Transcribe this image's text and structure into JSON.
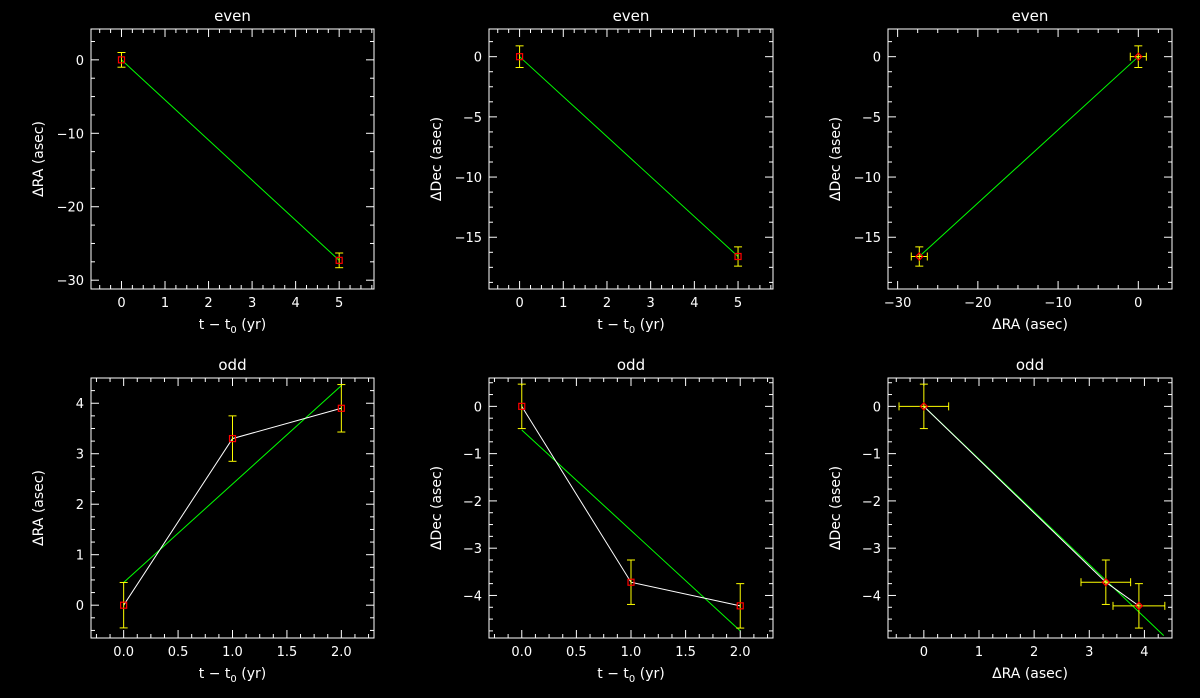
{
  "colors": {
    "background": "#000000",
    "axes": "#ffffff",
    "data_line": "#ffffff",
    "fit_line": "#00ff00",
    "error_bar": "#ffff00",
    "marker": "#ff0000"
  },
  "chart_data": [
    {
      "type": "scatter",
      "title": "even",
      "xlabel": "t − t",
      "xlabel_sub": "0",
      "xlabel_tail": " (yr)",
      "ylabel": "ΔRA (asec)",
      "xlim": [
        -0.7,
        5.8
      ],
      "ylim": [
        -31.2,
        4.2
      ],
      "xticks": [
        0,
        1,
        2,
        3,
        4,
        5
      ],
      "xtick_labels": [
        "0",
        "1",
        "2",
        "3",
        "4",
        "5"
      ],
      "yticks": [
        -30,
        -20,
        -10,
        0
      ],
      "ytick_labels": [
        "−30",
        "−20",
        "−10",
        "0"
      ],
      "points": [
        {
          "x": 0,
          "y": 0
        },
        {
          "x": 5,
          "y": -27.3
        }
      ],
      "yerr": [
        1.0,
        1.0
      ],
      "xerr": null,
      "fit": [
        [
          0,
          0
        ],
        [
          5,
          -27.3
        ]
      ],
      "connect": false,
      "marker": "square"
    },
    {
      "type": "scatter",
      "title": "even",
      "xlabel": "t − t",
      "xlabel_sub": "0",
      "xlabel_tail": " (yr)",
      "ylabel": "ΔDec (asec)",
      "xlim": [
        -0.7,
        5.8
      ],
      "ylim": [
        -19.3,
        2.3
      ],
      "xticks": [
        0,
        1,
        2,
        3,
        4,
        5
      ],
      "xtick_labels": [
        "0",
        "1",
        "2",
        "3",
        "4",
        "5"
      ],
      "yticks": [
        -15,
        -10,
        -5,
        0
      ],
      "ytick_labels": [
        "−15",
        "−10",
        "−5",
        "0"
      ],
      "points": [
        {
          "x": 0,
          "y": 0
        },
        {
          "x": 5,
          "y": -16.6
        }
      ],
      "yerr": [
        0.9,
        0.8
      ],
      "xerr": null,
      "fit": [
        [
          0,
          0
        ],
        [
          5,
          -16.6
        ]
      ],
      "connect": false,
      "marker": "square"
    },
    {
      "type": "scatter",
      "title": "even",
      "xlabel": "ΔRA (asec)",
      "xlabel_sub": "",
      "xlabel_tail": "",
      "ylabel": "ΔDec (asec)",
      "xlim": [
        -31.2,
        4.2
      ],
      "ylim": [
        -19.3,
        2.3
      ],
      "xticks": [
        -30,
        -20,
        -10,
        0
      ],
      "xtick_labels": [
        "−30",
        "−20",
        "−10",
        "0"
      ],
      "yticks": [
        -15,
        -10,
        -5,
        0
      ],
      "ytick_labels": [
        "−15",
        "−10",
        "−5",
        "0"
      ],
      "points": [
        {
          "x": 0,
          "y": 0
        },
        {
          "x": -27.3,
          "y": -16.6
        }
      ],
      "yerr": [
        0.9,
        0.8
      ],
      "xerr": [
        1.0,
        1.0
      ],
      "fit": [
        [
          0,
          0
        ],
        [
          -27.3,
          -16.6
        ]
      ],
      "connect": false,
      "marker": "diamond"
    },
    {
      "type": "line",
      "title": "odd",
      "xlabel": "t − t",
      "xlabel_sub": "0",
      "xlabel_tail": " (yr)",
      "ylabel": "ΔRA (asec)",
      "xlim": [
        -0.3,
        2.3
      ],
      "ylim": [
        -0.65,
        4.5
      ],
      "xticks": [
        0.0,
        0.5,
        1.0,
        1.5,
        2.0
      ],
      "xtick_labels": [
        "0.0",
        "0.5",
        "1.0",
        "1.5",
        "2.0"
      ],
      "yticks": [
        0,
        1,
        2,
        3,
        4
      ],
      "ytick_labels": [
        "0",
        "1",
        "2",
        "3",
        "4"
      ],
      "points": [
        {
          "x": 0,
          "y": 0
        },
        {
          "x": 1,
          "y": 3.3
        },
        {
          "x": 2,
          "y": 3.9
        }
      ],
      "yerr": [
        0.45,
        0.45,
        0.47
      ],
      "xerr": null,
      "fit": [
        [
          0,
          0.45
        ],
        [
          2,
          4.35
        ]
      ],
      "connect": true,
      "marker": "square"
    },
    {
      "type": "line",
      "title": "odd",
      "xlabel": "t − t",
      "xlabel_sub": "0",
      "xlabel_tail": " (yr)",
      "ylabel": "ΔDec (asec)",
      "xlim": [
        -0.3,
        2.3
      ],
      "ylim": [
        -4.9,
        0.6
      ],
      "xticks": [
        0.0,
        0.5,
        1.0,
        1.5,
        2.0
      ],
      "xtick_labels": [
        "0.0",
        "0.5",
        "1.0",
        "1.5",
        "2.0"
      ],
      "yticks": [
        -4,
        -3,
        -2,
        -1,
        0
      ],
      "ytick_labels": [
        "−4",
        "−3",
        "−2",
        "−1",
        "0"
      ],
      "points": [
        {
          "x": 0,
          "y": 0
        },
        {
          "x": 1,
          "y": -3.72
        },
        {
          "x": 2,
          "y": -4.22
        }
      ],
      "yerr": [
        0.47,
        0.47,
        0.47
      ],
      "xerr": null,
      "fit": [
        [
          0,
          -0.5
        ],
        [
          2,
          -4.75
        ]
      ],
      "connect": true,
      "marker": "square"
    },
    {
      "type": "scatter",
      "title": "odd",
      "xlabel": "ΔRA (asec)",
      "xlabel_sub": "",
      "xlabel_tail": "",
      "ylabel": "ΔDec (asec)",
      "xlim": [
        -0.65,
        4.5
      ],
      "ylim": [
        -4.9,
        0.6
      ],
      "xticks": [
        0,
        1,
        2,
        3,
        4
      ],
      "xtick_labels": [
        "0",
        "1",
        "2",
        "3",
        "4"
      ],
      "yticks": [
        -4,
        -3,
        -2,
        -1,
        0
      ],
      "ytick_labels": [
        "−4",
        "−3",
        "−2",
        "−1",
        "0"
      ],
      "points": [
        {
          "x": 0,
          "y": 0
        },
        {
          "x": 3.3,
          "y": -3.72
        },
        {
          "x": 3.9,
          "y": -4.22
        }
      ],
      "yerr": [
        0.47,
        0.47,
        0.47
      ],
      "xerr": [
        0.45,
        0.45,
        0.47
      ],
      "fit": [
        [
          0,
          0
        ],
        [
          4.35,
          -4.85
        ]
      ],
      "connect": true,
      "marker": "diamond"
    }
  ]
}
